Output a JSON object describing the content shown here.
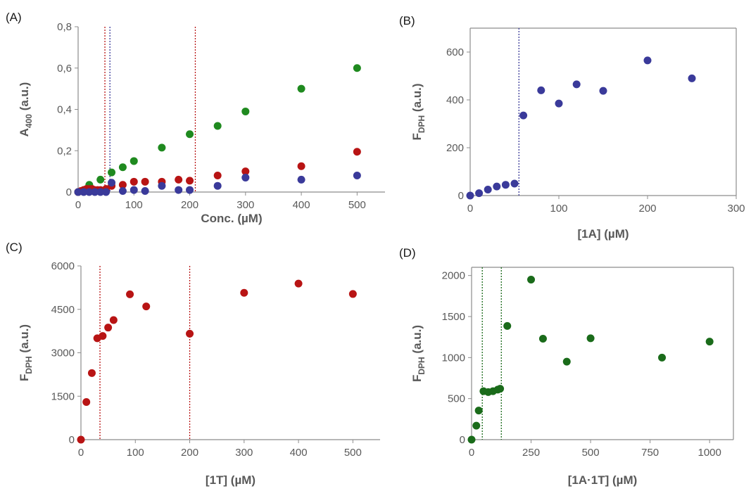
{
  "colors": {
    "blue": "#3a3a9a",
    "red": "#b81414",
    "green": "#1f8a1f",
    "darkgreen": "#1a6b1a",
    "axis": "#8c8c8c",
    "text": "#595959"
  },
  "chart_data": [
    {
      "panel": "(A)",
      "type": "scatter",
      "xlabel": "Conc. (µM)",
      "ylabel_main": "A",
      "ylabel_sub": "400",
      "ylabel_rest": " (a.u.)",
      "xlim": [
        0,
        550
      ],
      "ylim": [
        0,
        0.8
      ],
      "xticks": [
        0,
        100,
        200,
        300,
        400,
        500
      ],
      "xtick_labels": [
        "0",
        "100",
        "200",
        "300",
        "400",
        "500"
      ],
      "yticks": [
        0,
        0.2,
        0.4,
        0.6,
        0.8
      ],
      "ytick_labels": [
        "0",
        "0,2",
        "0,4",
        "0,6",
        "0,8"
      ],
      "vlines": [
        {
          "x": 48,
          "color": "red"
        },
        {
          "x": 57,
          "color": "blue"
        },
        {
          "x": 210,
          "color": "red"
        }
      ],
      "series": [
        {
          "color": "green",
          "points": [
            [
              0,
              0
            ],
            [
              10,
              0.01
            ],
            [
              20,
              0.035
            ],
            [
              40,
              0.06
            ],
            [
              60,
              0.095
            ],
            [
              80,
              0.12
            ],
            [
              100,
              0.15
            ],
            [
              150,
              0.215
            ],
            [
              200,
              0.28
            ],
            [
              250,
              0.32
            ],
            [
              300,
              0.39
            ],
            [
              400,
              0.5
            ],
            [
              500,
              0.6
            ]
          ]
        },
        {
          "color": "red",
          "points": [
            [
              0,
              0
            ],
            [
              5,
              0.005
            ],
            [
              10,
              0.01
            ],
            [
              15,
              0.015
            ],
            [
              20,
              0.015
            ],
            [
              25,
              0.015
            ],
            [
              30,
              0.01
            ],
            [
              35,
              0.01
            ],
            [
              40,
              0.01
            ],
            [
              50,
              0.015
            ],
            [
              60,
              0.03
            ],
            [
              80,
              0.035
            ],
            [
              100,
              0.05
            ],
            [
              120,
              0.05
            ],
            [
              150,
              0.05
            ],
            [
              180,
              0.06
            ],
            [
              200,
              0.055
            ],
            [
              250,
              0.08
            ],
            [
              300,
              0.1
            ],
            [
              400,
              0.125
            ],
            [
              500,
              0.195
            ]
          ]
        },
        {
          "color": "blue",
          "points": [
            [
              0,
              0
            ],
            [
              10,
              0
            ],
            [
              20,
              0
            ],
            [
              30,
              0
            ],
            [
              40,
              0
            ],
            [
              50,
              0
            ],
            [
              60,
              0.045
            ],
            [
              80,
              0.005
            ],
            [
              100,
              0.01
            ],
            [
              120,
              0.005
            ],
            [
              150,
              0.03
            ],
            [
              180,
              0.01
            ],
            [
              200,
              0.01
            ],
            [
              250,
              0.03
            ],
            [
              300,
              0.07
            ],
            [
              400,
              0.06
            ],
            [
              500,
              0.08
            ]
          ]
        }
      ]
    },
    {
      "panel": "(B)",
      "type": "scatter",
      "xlabel": "[1A] (µM)",
      "ylabel_main": "F",
      "ylabel_sub": "DPH",
      "ylabel_rest": " (a.u.)",
      "xlim": [
        0,
        300
      ],
      "ylim": [
        0,
        700
      ],
      "xticks": [
        0,
        100,
        200,
        300
      ],
      "xtick_labels": [
        "0",
        "100",
        "200",
        "300"
      ],
      "yticks": [
        0,
        200,
        400,
        600
      ],
      "ytick_labels": [
        "0",
        "200",
        "400",
        "600"
      ],
      "vlines": [
        {
          "x": 55,
          "color": "blue"
        }
      ],
      "series": [
        {
          "color": "blue",
          "points": [
            [
              0,
              0
            ],
            [
              10,
              10
            ],
            [
              20,
              25
            ],
            [
              30,
              38
            ],
            [
              40,
              45
            ],
            [
              50,
              50
            ],
            [
              60,
              335
            ],
            [
              80,
              440
            ],
            [
              100,
              385
            ],
            [
              120,
              465
            ],
            [
              150,
              438
            ],
            [
              200,
              565
            ],
            [
              250,
              490
            ]
          ]
        }
      ]
    },
    {
      "panel": "(C)",
      "type": "scatter",
      "xlabel": "[1T] (µM)",
      "ylabel_main": "F",
      "ylabel_sub": "DPH",
      "ylabel_rest": " (a.u.)",
      "xlim": [
        0,
        550
      ],
      "ylim": [
        0,
        6000
      ],
      "xticks": [
        0,
        100,
        200,
        300,
        400,
        500
      ],
      "xtick_labels": [
        "0",
        "100",
        "200",
        "300",
        "400",
        "500"
      ],
      "yticks": [
        0,
        1500,
        3000,
        4500,
        6000
      ],
      "ytick_labels": [
        "0",
        "1500",
        "3000",
        "4500",
        "6000"
      ],
      "vlines": [
        {
          "x": 35,
          "color": "red"
        },
        {
          "x": 200,
          "color": "red"
        }
      ],
      "series": [
        {
          "color": "red",
          "points": [
            [
              0,
              0
            ],
            [
              10,
              1300
            ],
            [
              20,
              2300
            ],
            [
              30,
              3500
            ],
            [
              40,
              3580
            ],
            [
              50,
              3870
            ],
            [
              60,
              4130
            ],
            [
              90,
              5020
            ],
            [
              120,
              4600
            ],
            [
              200,
              3660
            ],
            [
              300,
              5070
            ],
            [
              400,
              5390
            ],
            [
              500,
              5030
            ]
          ]
        }
      ]
    },
    {
      "panel": "(D)",
      "type": "scatter",
      "xlabel": "[1A·1T] (µM)",
      "ylabel_main": "F",
      "ylabel_sub": "DPH",
      "ylabel_rest": " (a.u.)",
      "xlim": [
        0,
        1100
      ],
      "ylim": [
        0,
        2100
      ],
      "xticks": [
        0,
        250,
        500,
        750,
        1000
      ],
      "xtick_labels": [
        "0",
        "250",
        "500",
        "750",
        "1000"
      ],
      "yticks": [
        0,
        500,
        1000,
        1500,
        2000
      ],
      "ytick_labels": [
        "0",
        "500",
        "1000",
        "1500",
        "2000"
      ],
      "vlines": [
        {
          "x": 45,
          "color": "darkgreen"
        },
        {
          "x": 125,
          "color": "darkgreen"
        }
      ],
      "series": [
        {
          "color": "darkgreen",
          "points": [
            [
              0,
              0
            ],
            [
              20,
              170
            ],
            [
              30,
              355
            ],
            [
              50,
              590
            ],
            [
              70,
              580
            ],
            [
              90,
              590
            ],
            [
              110,
              610
            ],
            [
              120,
              620
            ],
            [
              150,
              1385
            ],
            [
              250,
              1950
            ],
            [
              300,
              1230
            ],
            [
              400,
              950
            ],
            [
              500,
              1235
            ],
            [
              800,
              1000
            ],
            [
              1000,
              1195
            ]
          ]
        }
      ]
    }
  ]
}
